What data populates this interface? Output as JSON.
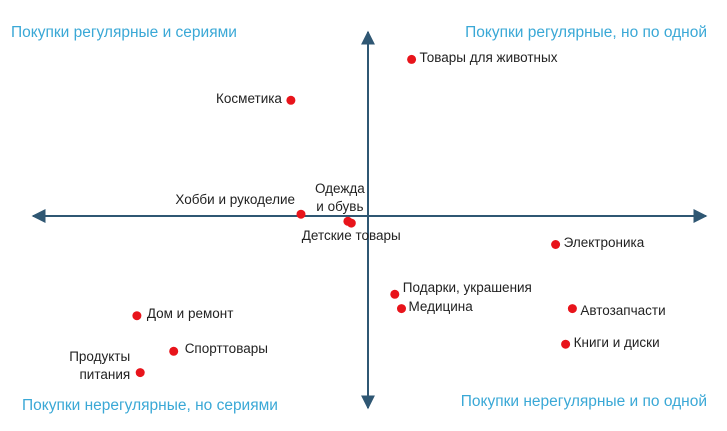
{
  "colors": {
    "quadrant_label": "#3aa8d6",
    "axis": "#2f5773",
    "point": "#e8141b",
    "text": "#222222"
  },
  "quadrants": {
    "top_left": "Покупки регулярные и сериями",
    "top_right": "Покупки регулярные, но по одной",
    "bottom_left": "Покупки нерегулярные, но сериями",
    "bottom_right": "Покупки нерегулярные и по одной"
  },
  "chart_data": {
    "type": "scatter",
    "points": [
      {
        "label": "Товары для животных",
        "x": 0.13,
        "y": 0.88
      },
      {
        "label": "Косметика",
        "x": -0.23,
        "y": 0.65
      },
      {
        "label": "Хобби и рукоделие",
        "x": -0.2,
        "y": 0.01
      },
      {
        "label": "Одежда\nи обувь",
        "x": -0.06,
        "y": -0.03
      },
      {
        "label": "Детские товары",
        "x": -0.05,
        "y": -0.04
      },
      {
        "label": "Электроника",
        "x": 0.56,
        "y": -0.16
      },
      {
        "label": "Подарки, украшения",
        "x": 0.08,
        "y": -0.44
      },
      {
        "label": "Медицина",
        "x": 0.1,
        "y": -0.52
      },
      {
        "label": "Автозапчасти",
        "x": 0.61,
        "y": -0.52
      },
      {
        "label": "Книги и диски",
        "x": 0.59,
        "y": -0.72
      },
      {
        "label": "Дом и ремонт",
        "x": -0.69,
        "y": -0.56
      },
      {
        "label": "Спорттовары",
        "x": -0.58,
        "y": -0.76
      },
      {
        "label": "Продукты\nпитания",
        "x": -0.68,
        "y": -0.88
      }
    ]
  }
}
